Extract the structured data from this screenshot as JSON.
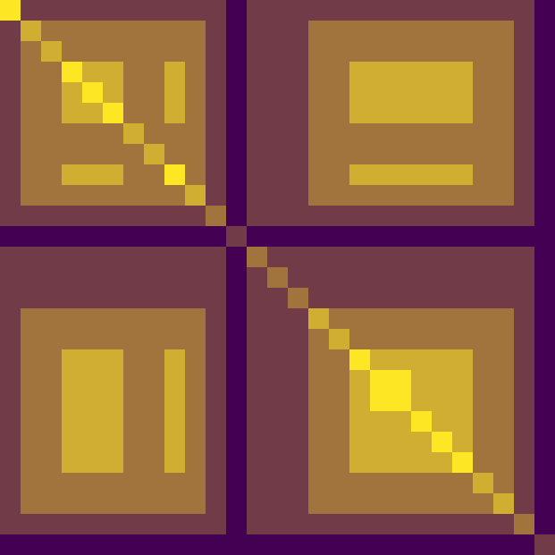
{
  "chart_data": {
    "type": "heatmap",
    "tick_labels": false,
    "zlim": [
      0,
      4
    ],
    "cells": [
      [
        4,
        1,
        1,
        1,
        1,
        1,
        1,
        1,
        1,
        1,
        1,
        0,
        1,
        1,
        1,
        1,
        1,
        1,
        1,
        1,
        1,
        1,
        1,
        1,
        1,
        1,
        0
      ],
      [
        1,
        3,
        2,
        2,
        2,
        2,
        2,
        2,
        2,
        2,
        1,
        0,
        1,
        1,
        1,
        2,
        2,
        2,
        2,
        2,
        2,
        2,
        2,
        2,
        2,
        1,
        0
      ],
      [
        1,
        2,
        3,
        2,
        2,
        2,
        2,
        2,
        2,
        2,
        1,
        0,
        1,
        1,
        1,
        2,
        2,
        2,
        2,
        2,
        2,
        2,
        2,
        2,
        2,
        1,
        0
      ],
      [
        1,
        2,
        2,
        4,
        3,
        3,
        2,
        2,
        3,
        2,
        1,
        0,
        1,
        1,
        1,
        2,
        2,
        3,
        3,
        3,
        3,
        3,
        3,
        2,
        2,
        1,
        0
      ],
      [
        1,
        2,
        2,
        3,
        4,
        3,
        2,
        2,
        3,
        2,
        1,
        0,
        1,
        1,
        1,
        2,
        2,
        3,
        3,
        3,
        3,
        3,
        3,
        2,
        2,
        1,
        0
      ],
      [
        1,
        2,
        2,
        3,
        3,
        4,
        2,
        2,
        3,
        2,
        1,
        0,
        1,
        1,
        1,
        2,
        2,
        3,
        3,
        3,
        3,
        3,
        3,
        2,
        2,
        1,
        0
      ],
      [
        1,
        2,
        2,
        2,
        2,
        2,
        3,
        2,
        2,
        2,
        1,
        0,
        1,
        1,
        1,
        2,
        2,
        2,
        2,
        2,
        2,
        2,
        2,
        2,
        2,
        1,
        0
      ],
      [
        1,
        2,
        2,
        2,
        2,
        2,
        2,
        3,
        2,
        2,
        1,
        0,
        1,
        1,
        1,
        2,
        2,
        2,
        2,
        2,
        2,
        2,
        2,
        2,
        2,
        1,
        0
      ],
      [
        1,
        2,
        2,
        3,
        3,
        3,
        2,
        2,
        4,
        2,
        1,
        0,
        1,
        1,
        1,
        2,
        2,
        3,
        3,
        3,
        3,
        3,
        3,
        2,
        2,
        1,
        0
      ],
      [
        1,
        2,
        2,
        2,
        2,
        2,
        2,
        2,
        2,
        3,
        1,
        0,
        1,
        1,
        1,
        2,
        2,
        2,
        2,
        2,
        2,
        2,
        2,
        2,
        2,
        1,
        0
      ],
      [
        1,
        1,
        1,
        1,
        1,
        1,
        1,
        1,
        1,
        1,
        2,
        0,
        1,
        1,
        1,
        1,
        1,
        1,
        1,
        1,
        1,
        1,
        1,
        1,
        1,
        1,
        0
      ],
      [
        0,
        0,
        0,
        0,
        0,
        0,
        0,
        0,
        0,
        0,
        0,
        1,
        0,
        0,
        0,
        0,
        0,
        0,
        0,
        0,
        0,
        0,
        0,
        0,
        0,
        0,
        0
      ],
      [
        1,
        1,
        1,
        1,
        1,
        1,
        1,
        1,
        1,
        1,
        1,
        0,
        2,
        1,
        1,
        1,
        1,
        1,
        1,
        1,
        1,
        1,
        1,
        1,
        1,
        1,
        0
      ],
      [
        1,
        1,
        1,
        1,
        1,
        1,
        1,
        1,
        1,
        1,
        1,
        0,
        1,
        2,
        1,
        1,
        1,
        1,
        1,
        1,
        1,
        1,
        1,
        1,
        1,
        1,
        0
      ],
      [
        1,
        1,
        1,
        1,
        1,
        1,
        1,
        1,
        1,
        1,
        1,
        0,
        1,
        1,
        2,
        1,
        1,
        1,
        1,
        1,
        1,
        1,
        1,
        1,
        1,
        1,
        0
      ],
      [
        1,
        2,
        2,
        2,
        2,
        2,
        2,
        2,
        2,
        2,
        1,
        0,
        1,
        1,
        1,
        3,
        2,
        2,
        2,
        2,
        2,
        2,
        2,
        2,
        2,
        1,
        0
      ],
      [
        1,
        2,
        2,
        2,
        2,
        2,
        2,
        2,
        2,
        2,
        1,
        0,
        1,
        1,
        1,
        2,
        3,
        2,
        2,
        2,
        2,
        2,
        2,
        2,
        2,
        1,
        0
      ],
      [
        1,
        2,
        2,
        3,
        3,
        3,
        2,
        2,
        3,
        2,
        1,
        0,
        1,
        1,
        1,
        2,
        2,
        4,
        3,
        3,
        3,
        3,
        3,
        2,
        2,
        1,
        0
      ],
      [
        1,
        2,
        2,
        3,
        3,
        3,
        2,
        2,
        3,
        2,
        1,
        0,
        1,
        1,
        1,
        2,
        2,
        3,
        4,
        4,
        3,
        3,
        3,
        2,
        2,
        1,
        0
      ],
      [
        1,
        2,
        2,
        3,
        3,
        3,
        2,
        2,
        3,
        2,
        1,
        0,
        1,
        1,
        1,
        2,
        2,
        3,
        4,
        4,
        3,
        3,
        3,
        2,
        2,
        1,
        0
      ],
      [
        1,
        2,
        2,
        3,
        3,
        3,
        2,
        2,
        3,
        2,
        1,
        0,
        1,
        1,
        1,
        2,
        2,
        3,
        3,
        3,
        4,
        3,
        3,
        2,
        2,
        1,
        0
      ],
      [
        1,
        2,
        2,
        3,
        3,
        3,
        2,
        2,
        3,
        2,
        1,
        0,
        1,
        1,
        1,
        2,
        2,
        3,
        3,
        3,
        3,
        4,
        3,
        2,
        2,
        1,
        0
      ],
      [
        1,
        2,
        2,
        3,
        3,
        3,
        2,
        2,
        3,
        2,
        1,
        0,
        1,
        1,
        1,
        2,
        2,
        3,
        3,
        3,
        3,
        3,
        4,
        2,
        2,
        1,
        0
      ],
      [
        1,
        2,
        2,
        2,
        2,
        2,
        2,
        2,
        2,
        2,
        1,
        0,
        1,
        1,
        1,
        2,
        2,
        2,
        2,
        2,
        2,
        2,
        2,
        3,
        2,
        1,
        0
      ],
      [
        1,
        2,
        2,
        2,
        2,
        2,
        2,
        2,
        2,
        2,
        1,
        0,
        1,
        1,
        1,
        2,
        2,
        2,
        2,
        2,
        2,
        2,
        2,
        2,
        3,
        1,
        0
      ],
      [
        1,
        1,
        1,
        1,
        1,
        1,
        1,
        1,
        1,
        1,
        1,
        0,
        1,
        1,
        1,
        1,
        1,
        1,
        1,
        1,
        1,
        1,
        1,
        1,
        1,
        2,
        0
      ],
      [
        0,
        0,
        0,
        0,
        0,
        0,
        0,
        0,
        0,
        0,
        0,
        0,
        0,
        0,
        0,
        0,
        0,
        0,
        0,
        0,
        0,
        0,
        0,
        0,
        0,
        0,
        1
      ]
    ]
  }
}
